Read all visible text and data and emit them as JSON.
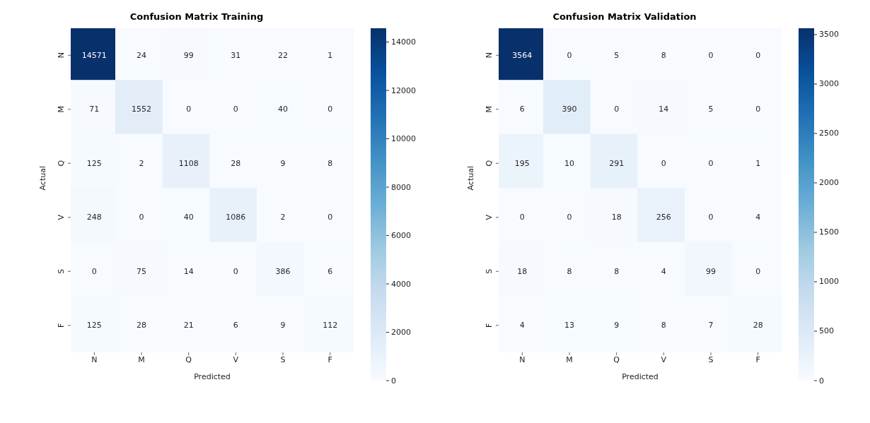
{
  "chart_data": [
    {
      "type": "heatmap",
      "title": "Confusion Matrix Training",
      "xlabel": "Predicted",
      "ylabel": "Actual",
      "categories": [
        "N",
        "M",
        "Q",
        "V",
        "S",
        "F"
      ],
      "y_categories": [
        "N",
        "M",
        "Q",
        "V",
        "S",
        "F"
      ],
      "cells": [
        [
          14571,
          24,
          99,
          31,
          22,
          1
        ],
        [
          71,
          1552,
          0,
          0,
          40,
          0
        ],
        [
          125,
          2,
          1108,
          28,
          9,
          8
        ],
        [
          248,
          0,
          40,
          1086,
          2,
          0
        ],
        [
          0,
          75,
          14,
          0,
          386,
          6
        ],
        [
          125,
          28,
          21,
          6,
          9,
          112
        ]
      ],
      "clim": [
        0,
        14571
      ],
      "cticks": [
        0,
        2000,
        4000,
        6000,
        8000,
        10000,
        12000,
        14000
      ],
      "data_labels": true
    },
    {
      "type": "heatmap",
      "title": "Confusion Matrix Validation",
      "xlabel": "Predicted",
      "ylabel": "Actual",
      "categories": [
        "N",
        "M",
        "Q",
        "V",
        "S",
        "F"
      ],
      "y_categories": [
        "N",
        "M",
        "Q",
        "V",
        "S",
        "F"
      ],
      "cells": [
        [
          3564,
          0,
          5,
          8,
          0,
          0
        ],
        [
          6,
          390,
          0,
          14,
          5,
          0
        ],
        [
          195,
          10,
          291,
          0,
          0,
          1
        ],
        [
          0,
          0,
          18,
          256,
          0,
          4
        ],
        [
          18,
          8,
          8,
          4,
          99,
          0
        ],
        [
          4,
          13,
          9,
          8,
          7,
          28
        ]
      ],
      "clim": [
        0,
        3564
      ],
      "cticks": [
        0,
        500,
        1000,
        1500,
        2000,
        2500,
        3000,
        3500
      ],
      "data_labels": true
    }
  ]
}
